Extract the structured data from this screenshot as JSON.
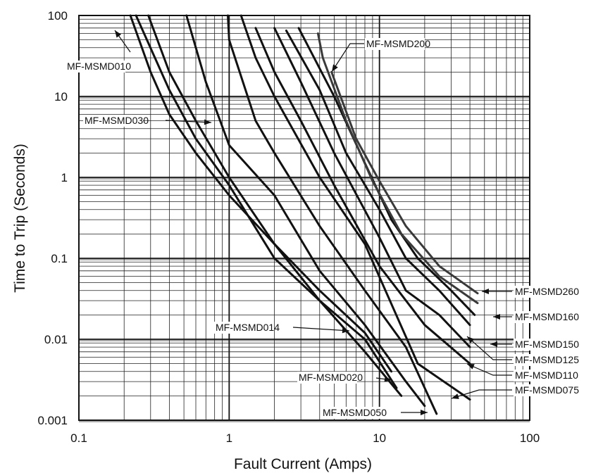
{
  "chart_data": {
    "type": "line",
    "xlabel": "Fault Current  (Amps)",
    "ylabel": "Time to Trip (Seconds)",
    "x_scale": "log",
    "y_scale": "log",
    "xlim": [
      0.1,
      100
    ],
    "ylim": [
      0.001,
      100
    ],
    "grid": true,
    "x_ticks": [
      "0.1",
      "1",
      "10",
      "100"
    ],
    "y_ticks": [
      "0.001",
      "0.01",
      "0.1",
      "1",
      "10",
      "100"
    ],
    "series": [
      {
        "name": "MF-MSMD010",
        "points": [
          [
            0.22,
            100
          ],
          [
            0.3,
            20
          ],
          [
            0.4,
            6
          ],
          [
            0.6,
            2
          ],
          [
            1,
            0.6
          ],
          [
            2,
            0.15
          ],
          [
            4,
            0.04
          ],
          [
            8,
            0.012
          ],
          [
            12,
            0.004
          ]
        ]
      },
      {
        "name": "MF-MSMD014",
        "points": [
          [
            0.24,
            100
          ],
          [
            0.4,
            12
          ],
          [
            0.6,
            3
          ],
          [
            1,
            0.8
          ],
          [
            2,
            0.1
          ],
          [
            4,
            0.03
          ],
          [
            8,
            0.01
          ],
          [
            13,
            0.0025
          ]
        ]
      },
      {
        "name": "MF-MSMD020",
        "points": [
          [
            0.29,
            100
          ],
          [
            0.4,
            20
          ],
          [
            0.6,
            5
          ],
          [
            1,
            1
          ],
          [
            2,
            0.15
          ],
          [
            4,
            0.03
          ],
          [
            8,
            0.007
          ],
          [
            14,
            0.002
          ]
        ]
      },
      {
        "name": "MF-MSMD030",
        "points": [
          [
            0.52,
            100
          ],
          [
            0.7,
            15
          ],
          [
            1,
            2.5
          ],
          [
            2,
            0.6
          ],
          [
            4,
            0.07
          ],
          [
            8,
            0.015
          ],
          [
            15,
            0.003
          ],
          [
            20,
            0.0015
          ]
        ]
      },
      {
        "name": "MF-MSMD050",
        "points": [
          [
            0.98,
            100
          ],
          [
            1,
            50
          ],
          [
            1.5,
            5
          ],
          [
            2,
            2
          ],
          [
            4,
            0.25
          ],
          [
            8,
            0.04
          ],
          [
            15,
            0.008
          ],
          [
            24,
            0.0012
          ]
        ]
      },
      {
        "name": "MF-MSMD075",
        "points": [
          [
            1.2,
            100
          ],
          [
            1.5,
            30
          ],
          [
            2,
            10
          ],
          [
            4,
            1
          ],
          [
            8,
            0.15
          ],
          [
            18,
            0.005
          ],
          [
            40,
            0.0018
          ]
        ]
      },
      {
        "name": "MF-MSMD110",
        "points": [
          [
            1.5,
            70
          ],
          [
            2,
            20
          ],
          [
            3,
            5
          ],
          [
            5,
            0.8
          ],
          [
            10,
            0.08
          ],
          [
            20,
            0.015
          ],
          [
            40,
            0.005
          ]
        ]
      },
      {
        "name": "MF-MSMD125",
        "points": [
          [
            2,
            70
          ],
          [
            3,
            15
          ],
          [
            5,
            2
          ],
          [
            10,
            0.18
          ],
          [
            15,
            0.04
          ],
          [
            25,
            0.02
          ],
          [
            40,
            0.008
          ]
        ]
      },
      {
        "name": "MF-MSMD150",
        "points": [
          [
            2.4,
            65
          ],
          [
            4,
            12
          ],
          [
            6,
            2
          ],
          [
            10,
            0.4
          ],
          [
            15,
            0.1
          ],
          [
            25,
            0.04
          ],
          [
            40,
            0.015
          ]
        ]
      },
      {
        "name": "MF-MSMD160",
        "points": [
          [
            2.9,
            70
          ],
          [
            5,
            10
          ],
          [
            8,
            1.5
          ],
          [
            12,
            0.3
          ],
          [
            18,
            0.1
          ],
          [
            30,
            0.04
          ],
          [
            43,
            0.02
          ]
        ]
      },
      {
        "name": "MF-MSMD200",
        "points": [
          [
            3.9,
            60
          ],
          [
            4.2,
            30
          ],
          [
            6,
            5
          ],
          [
            9,
            0.9
          ],
          [
            14,
            0.2
          ],
          [
            25,
            0.06
          ],
          [
            45,
            0.028
          ]
        ]
      },
      {
        "name": "MF-MSMD260",
        "points": [
          [
            4.8,
            20
          ],
          [
            7,
            3
          ],
          [
            10,
            0.9
          ],
          [
            15,
            0.25
          ],
          [
            25,
            0.08
          ],
          [
            45,
            0.037
          ]
        ]
      }
    ],
    "annotations": [
      {
        "text": "MF-MSMD010",
        "series": "MF-MSMD010"
      },
      {
        "text": "MF-MSMD030",
        "series": "MF-MSMD030"
      },
      {
        "text": "MF-MSMD200",
        "series": "MF-MSMD200"
      },
      {
        "text": "MF-MSMD014",
        "series": "MF-MSMD014"
      },
      {
        "text": "MF-MSMD020",
        "series": "MF-MSMD020"
      },
      {
        "text": "MF-MSMD050",
        "series": "MF-MSMD050"
      },
      {
        "text": "MF-MSMD260",
        "series": "MF-MSMD260"
      },
      {
        "text": "MF-MSMD160",
        "series": "MF-MSMD160"
      },
      {
        "text": "MF-MSMD150",
        "series": "MF-MSMD150"
      },
      {
        "text": "MF-MSMD125",
        "series": "MF-MSMD125"
      },
      {
        "text": "MF-MSMD110",
        "series": "MF-MSMD110"
      },
      {
        "text": "MF-MSMD075",
        "series": "MF-MSMD075"
      }
    ]
  }
}
